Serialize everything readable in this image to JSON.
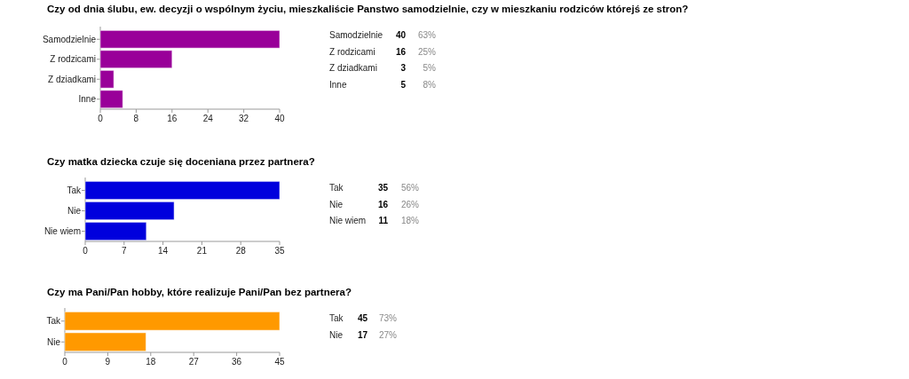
{
  "chart_data": [
    {
      "type": "bar",
      "orientation": "horizontal",
      "title": "Czy od dnia ślubu, ew. decyzji o wspólnym życiu, mieszkaliście Panstwo samodzielnie, czy w mieszkaniu rodziców którejś ze stron?",
      "categories": [
        "Samodzielnie",
        "Z rodzicami",
        "Z dziadkami",
        "Inne"
      ],
      "values": [
        40,
        16,
        3,
        5
      ],
      "color": "#990099",
      "xlim": [
        0,
        40
      ],
      "xticks": [
        0,
        8,
        16,
        24,
        32,
        40
      ],
      "data_labels": true,
      "annotations": [
        "63%",
        "25%",
        "5%",
        "8%"
      ]
    },
    {
      "type": "bar",
      "orientation": "horizontal",
      "title": "Czy matka dziecka czuje się doceniana przez partnera?",
      "categories": [
        "Tak",
        "Nie",
        "Nie wiem"
      ],
      "values": [
        35,
        16,
        11
      ],
      "color": "#0000dd",
      "xlim": [
        0,
        35
      ],
      "xticks": [
        0,
        7,
        14,
        21,
        28,
        35
      ],
      "data_labels": true,
      "annotations": [
        "56%",
        "26%",
        "18%"
      ]
    },
    {
      "type": "bar",
      "orientation": "horizontal",
      "title": "Czy ma Pani/Pan hobby, które realizuje Pani/Pan bez partnera?",
      "categories": [
        "Tak",
        "Nie"
      ],
      "values": [
        45,
        17
      ],
      "color": "#ff9900",
      "xlim": [
        0,
        45
      ],
      "xticks": [
        0,
        9,
        18,
        27,
        36,
        45
      ],
      "data_labels": true,
      "annotations": [
        "73%",
        "27%"
      ]
    }
  ]
}
